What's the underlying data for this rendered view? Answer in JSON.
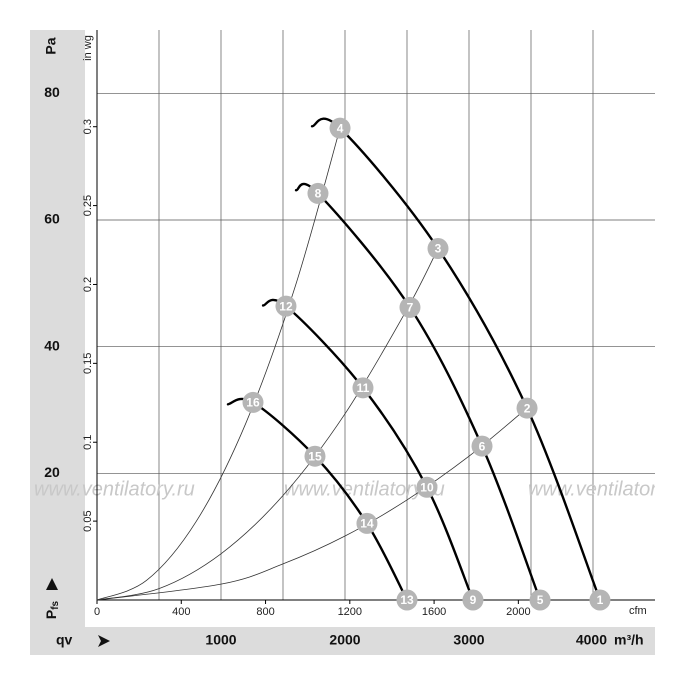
{
  "chart_data": {
    "type": "fan-curve",
    "y_label": "Pa",
    "pressure_symbol": "P",
    "pressure_subscript": "fs",
    "flow_symbol": "qv",
    "x_unit": "m³/h",
    "x2_label": "cfm",
    "y2_label": "in wg",
    "watermark": "www.ventilatory.ru",
    "xlim": [
      0,
      4500
    ],
    "ylim": [
      0,
      90
    ],
    "xticks": [
      1000,
      2000,
      3000,
      4000
    ],
    "xgrid": [
      500,
      1000,
      1500,
      2000,
      2500,
      3000,
      3500,
      4000
    ],
    "yticks": [
      20,
      40,
      60,
      80
    ],
    "x2lim": [
      0,
      2648.6
    ],
    "x2ticks": [
      0,
      400,
      800,
      1200,
      1600,
      2000
    ],
    "y2lim": [
      0,
      0.3613
    ],
    "y2ticks": [
      0.05,
      0.1,
      0.15,
      0.2,
      0.25,
      0.3
    ],
    "grid": true,
    "series": [
      {
        "color": "#000000",
        "line_width": 2.4,
        "x": [
          1734,
          1960,
          2750,
          3468,
          4056
        ],
        "values": [
          74.8,
          74.5,
          55.5,
          30.3,
          0
        ]
      },
      {
        "color": "#000000",
        "line_width": 2.4,
        "x": [
          1605,
          1782,
          2524,
          3105,
          3573
        ],
        "values": [
          64.7,
          64.2,
          46.2,
          24.3,
          0
        ]
      },
      {
        "color": "#000000",
        "line_width": 2.4,
        "x": [
          1339,
          1524,
          2145,
          2661,
          3032
        ],
        "values": [
          46.5,
          46.4,
          33.5,
          17.8,
          0
        ]
      },
      {
        "color": "#000000",
        "line_width": 2.4,
        "x": [
          1056,
          1258,
          1758,
          2177,
          2500
        ],
        "values": [
          30.9,
          31.2,
          22.7,
          12.1,
          0
        ]
      },
      {
        "color": "#333333",
        "line_width": 0.8,
        "x": [
          0,
          400,
          800,
          1200,
          1600,
          1960
        ],
        "values": [
          0,
          3.1,
          12.4,
          27.9,
          49.6,
          74.5
        ]
      },
      {
        "color": "#333333",
        "line_width": 0.8,
        "x": [
          0,
          500,
          1000,
          1500,
          2000,
          2500,
          2750
        ],
        "values": [
          0,
          1.8,
          7.3,
          16.5,
          29.4,
          45.9,
          55.5
        ]
      },
      {
        "color": "#333333",
        "line_width": 0.8,
        "x": [
          0,
          1000,
          1500,
          2000,
          2500,
          3000,
          3468
        ],
        "values": [
          0,
          2.5,
          5.7,
          10.1,
          15.8,
          22.7,
          30.3
        ]
      }
    ],
    "points": [
      {
        "label": "1",
        "x": 4056,
        "y": 0
      },
      {
        "label": "2",
        "x": 3468,
        "y": 30.3
      },
      {
        "label": "3",
        "x": 2750,
        "y": 55.5
      },
      {
        "label": "4",
        "x": 1960,
        "y": 74.5
      },
      {
        "label": "5",
        "x": 3573,
        "y": 0
      },
      {
        "label": "6",
        "x": 3105,
        "y": 24.3
      },
      {
        "label": "7",
        "x": 2524,
        "y": 46.2
      },
      {
        "label": "8",
        "x": 1782,
        "y": 64.2
      },
      {
        "label": "9",
        "x": 3032,
        "y": 0
      },
      {
        "label": "10",
        "x": 2661,
        "y": 17.8
      },
      {
        "label": "11",
        "x": 2145,
        "y": 33.5
      },
      {
        "label": "12",
        "x": 1524,
        "y": 46.4
      },
      {
        "label": "13",
        "x": 2500,
        "y": 0
      },
      {
        "label": "14",
        "x": 2177,
        "y": 12.1
      },
      {
        "label": "15",
        "x": 1758,
        "y": 22.7
      },
      {
        "label": "16",
        "x": 1258,
        "y": 31.2
      }
    ],
    "point_color": "#b5b5b5"
  }
}
